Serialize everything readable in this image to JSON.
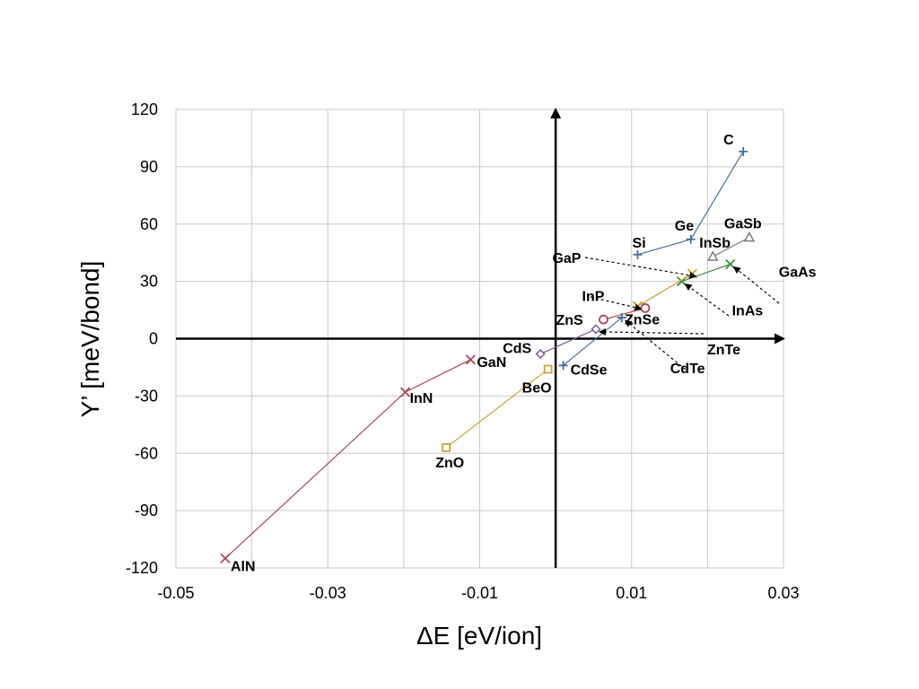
{
  "chart_data": {
    "type": "scatter",
    "xlabel": "ΔE [eV/ion]",
    "ylabel": "Y’ [meV/bond]",
    "xlim": [
      -0.05,
      0.03
    ],
    "ylim": [
      -120,
      120
    ],
    "x_ticks": [
      "-0.05",
      "-0.03",
      "-0.01",
      "0.01",
      "0.03"
    ],
    "y_ticks": [
      "120",
      "90",
      "60",
      "30",
      "0",
      "-30",
      "-60",
      "-90",
      "-120"
    ],
    "grid": true,
    "colors": {
      "group_iv": "#4a6f96",
      "nitrides": "#a44a55",
      "oxides": "#c9a03c",
      "ga_in_sb": "#7a7a7a",
      "ga_in_as": "#3c8a3c",
      "zn_s_se": "#a44a55",
      "zn_cd_te": "#c9a03c",
      "cd_s_se": "#7a5a9a"
    },
    "series": [
      {
        "color_key": "group_iv",
        "marker": "plus",
        "points": [
          {
            "label": "Si",
            "x": 0.0108,
            "y": 44
          },
          {
            "label": "Ge",
            "x": 0.0178,
            "y": 52
          },
          {
            "label": "C",
            "x": 0.0247,
            "y": 98
          }
        ]
      },
      {
        "color_key": "nitrides",
        "marker": "x",
        "points": [
          {
            "label": "AlN",
            "x": -0.0435,
            "y": -115
          },
          {
            "label": "InN",
            "x": -0.0198,
            "y": -28
          },
          {
            "label": "GaN",
            "x": -0.0112,
            "y": -11
          }
        ]
      },
      {
        "color_key": "oxides",
        "marker": "square",
        "points": [
          {
            "label": "ZnO",
            "x": -0.0144,
            "y": -57
          },
          {
            "label": "BeO",
            "x": -0.001,
            "y": -16
          }
        ]
      },
      {
        "color_key": "ga_in_sb",
        "marker": "triangle",
        "points": [
          {
            "label": "InSb",
            "x": 0.0207,
            "y": 43
          },
          {
            "label": "GaSb",
            "x": 0.0255,
            "y": 53
          }
        ]
      },
      {
        "color_key": "ga_in_as",
        "marker": "x",
        "points": [
          {
            "label": "InAs",
            "x": 0.0166,
            "y": 30
          },
          {
            "label": "GaAs",
            "x": 0.023,
            "y": 39
          }
        ]
      },
      {
        "color_key": "oxides",
        "marker": "x",
        "points": [
          {
            "label": "InP",
            "x": 0.0108,
            "y": 17
          },
          {
            "label": "GaP",
            "x": 0.018,
            "y": 34
          }
        ]
      },
      {
        "color_key": "zn_s_se",
        "marker": "circle",
        "points": [
          {
            "label": "ZnS",
            "x": 0.0063,
            "y": 10
          },
          {
            "label": "ZnSe",
            "x": 0.0118,
            "y": 16
          }
        ]
      },
      {
        "color_key": "group_iv",
        "marker": "plus",
        "points": [
          {
            "label": "CdSe",
            "x": 0.001,
            "y": -14
          },
          {
            "label": "CdTe",
            "x": 0.0087,
            "y": 11
          }
        ]
      },
      {
        "color_key": "cd_s_se",
        "marker": "diamond",
        "points": [
          {
            "label": "CdS",
            "x": -0.002,
            "y": -8
          },
          {
            "label": "ZnTe",
            "x": 0.0053,
            "y": 5
          }
        ]
      }
    ]
  }
}
